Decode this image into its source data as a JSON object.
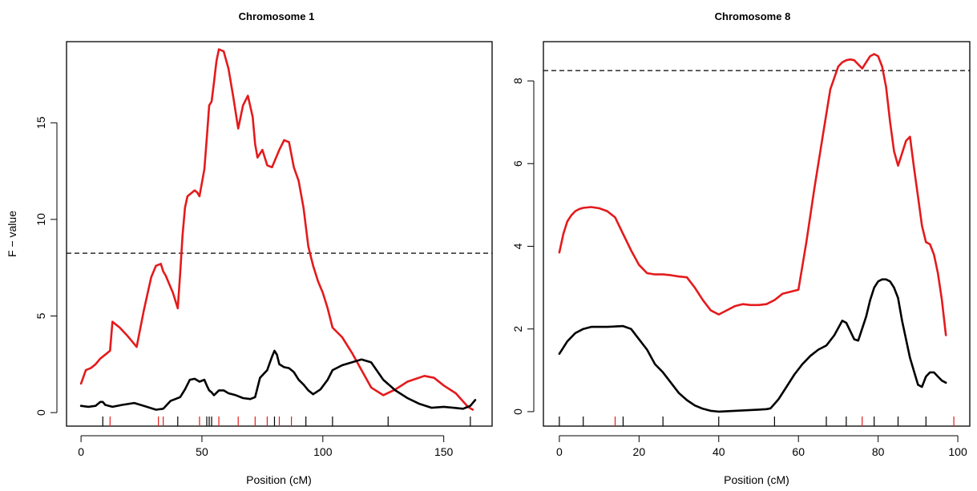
{
  "chart_data": [
    {
      "type": "line",
      "title": "Chromosome  1",
      "xlabel": "Position (cM)",
      "ylabel": "F − value",
      "xlim": [
        -6,
        170
      ],
      "ylim": [
        -0.7,
        19.2
      ],
      "xticks": [
        0,
        50,
        100,
        150
      ],
      "yticks": [
        0,
        5,
        10,
        15
      ],
      "threshold": 8.25,
      "grid": false,
      "series": [
        {
          "color": "#e41a1c",
          "x": [
            0,
            2,
            4,
            6,
            8,
            10,
            12,
            13,
            16,
            19,
            23,
            26,
            29,
            31,
            33,
            34,
            35,
            36,
            38,
            40,
            41,
            42,
            43,
            44,
            46,
            47,
            48,
            49,
            51,
            52,
            53,
            54,
            55,
            56,
            57,
            59,
            61,
            63,
            65,
            67,
            69,
            71,
            72,
            73,
            75,
            77,
            79,
            81,
            82,
            84,
            86,
            88,
            90,
            92,
            94,
            96,
            98,
            100,
            102,
            104,
            108,
            112,
            116,
            120,
            125,
            130,
            135,
            142,
            146,
            150,
            155,
            160,
            162
          ],
          "y": [
            1.5,
            2.2,
            2.3,
            2.5,
            2.8,
            3.0,
            3.2,
            4.7,
            4.4,
            4.0,
            3.4,
            5.3,
            7.0,
            7.6,
            7.7,
            7.3,
            7.1,
            6.8,
            6.2,
            5.4,
            7.2,
            9.2,
            10.6,
            11.2,
            11.4,
            11.5,
            11.4,
            11.2,
            12.6,
            14.2,
            15.9,
            16.1,
            17.1,
            18.2,
            18.8,
            18.7,
            17.8,
            16.3,
            14.7,
            15.9,
            16.4,
            15.3,
            13.9,
            13.2,
            13.6,
            12.8,
            12.7,
            13.3,
            13.6,
            14.1,
            14.0,
            12.7,
            12.0,
            10.6,
            8.6,
            7.6,
            6.8,
            6.2,
            5.4,
            4.4,
            3.9,
            3.1,
            2.2,
            1.3,
            0.9,
            1.2,
            1.6,
            1.9,
            1.8,
            1.4,
            1.0,
            0.3,
            0.15
          ]
        },
        {
          "color": "#000000",
          "x": [
            0,
            3,
            6,
            8,
            9,
            10,
            13,
            17,
            22,
            26,
            31,
            34,
            37,
            39,
            41,
            43,
            45,
            47,
            49,
            51,
            52,
            53,
            54,
            55,
            57,
            59,
            61,
            64,
            67,
            70,
            72,
            74,
            77,
            79,
            80,
            81,
            82,
            84,
            86,
            88,
            90,
            92,
            94,
            96,
            99,
            102,
            104,
            108,
            112,
            116,
            120,
            125,
            130,
            135,
            140,
            145,
            150,
            154,
            158,
            161,
            163
          ],
          "y": [
            0.35,
            0.3,
            0.35,
            0.55,
            0.55,
            0.4,
            0.3,
            0.4,
            0.5,
            0.35,
            0.15,
            0.2,
            0.6,
            0.7,
            0.8,
            1.2,
            1.7,
            1.75,
            1.6,
            1.7,
            1.4,
            1.15,
            1.05,
            0.9,
            1.15,
            1.15,
            1.0,
            0.9,
            0.75,
            0.7,
            0.8,
            1.8,
            2.2,
            2.9,
            3.2,
            3.0,
            2.5,
            2.35,
            2.3,
            2.1,
            1.7,
            1.45,
            1.15,
            0.95,
            1.2,
            1.7,
            2.2,
            2.45,
            2.6,
            2.75,
            2.6,
            1.7,
            1.15,
            0.75,
            0.45,
            0.25,
            0.3,
            0.25,
            0.2,
            0.35,
            0.65
          ]
        }
      ],
      "markers": {
        "red": [
          12,
          32,
          34,
          49,
          57,
          65,
          72,
          77,
          82,
          87
        ],
        "black": [
          9,
          40,
          52,
          53,
          54,
          80,
          93,
          104,
          127,
          161
        ]
      }
    },
    {
      "type": "line",
      "title": "Chromosome  8",
      "xlabel": "Position (cM)",
      "ylabel": "",
      "xlim": [
        -4,
        103
      ],
      "ylim": [
        -0.35,
        8.95
      ],
      "xticks": [
        0,
        20,
        40,
        60,
        80,
        100
      ],
      "yticks": [
        0,
        2,
        4,
        6,
        8
      ],
      "threshold": 8.25,
      "grid": false,
      "series": [
        {
          "color": "#e41a1c",
          "x": [
            0,
            1,
            2,
            3,
            4,
            5,
            6,
            8,
            10,
            12,
            14,
            16,
            18,
            20,
            22,
            24,
            26,
            28,
            30,
            32,
            34,
            36,
            38,
            40,
            42,
            44,
            46,
            48,
            50,
            52,
            54,
            56,
            58,
            60,
            62,
            64,
            66,
            68,
            70,
            71,
            72,
            73,
            74,
            75,
            76,
            77,
            78,
            79,
            80,
            81,
            82,
            83,
            84,
            85,
            86,
            87,
            88,
            89,
            90,
            91,
            92,
            93,
            94,
            95,
            96,
            97
          ],
          "y": [
            3.85,
            4.3,
            4.6,
            4.75,
            4.85,
            4.9,
            4.93,
            4.95,
            4.92,
            4.85,
            4.7,
            4.3,
            3.9,
            3.55,
            3.35,
            3.32,
            3.32,
            3.3,
            3.27,
            3.25,
            3.0,
            2.7,
            2.45,
            2.35,
            2.45,
            2.55,
            2.6,
            2.58,
            2.58,
            2.6,
            2.7,
            2.85,
            2.9,
            2.95,
            4.1,
            5.4,
            6.6,
            7.8,
            8.35,
            8.45,
            8.5,
            8.52,
            8.5,
            8.4,
            8.3,
            8.45,
            8.6,
            8.65,
            8.6,
            8.35,
            7.85,
            7.0,
            6.3,
            5.95,
            6.25,
            6.55,
            6.65,
            5.9,
            5.2,
            4.5,
            4.1,
            4.05,
            3.8,
            3.35,
            2.7,
            1.85
          ]
        },
        {
          "color": "#000000",
          "x": [
            0,
            1,
            2,
            4,
            6,
            8,
            10,
            12,
            14,
            16,
            18,
            20,
            22,
            24,
            26,
            28,
            30,
            32,
            34,
            36,
            38,
            40,
            42,
            44,
            46,
            48,
            50,
            52,
            53,
            55,
            57,
            59,
            61,
            63,
            65,
            67,
            69,
            71,
            72,
            74,
            75,
            77,
            78,
            79,
            80,
            81,
            82,
            83,
            84,
            85,
            86,
            88,
            90,
            91,
            92,
            93,
            94,
            95,
            96,
            97
          ],
          "y": [
            1.4,
            1.55,
            1.7,
            1.9,
            2.0,
            2.05,
            2.05,
            2.05,
            2.06,
            2.07,
            2.0,
            1.75,
            1.5,
            1.15,
            0.95,
            0.7,
            0.45,
            0.28,
            0.15,
            0.07,
            0.02,
            0.0,
            0.01,
            0.02,
            0.03,
            0.04,
            0.05,
            0.06,
            0.08,
            0.3,
            0.6,
            0.9,
            1.15,
            1.35,
            1.5,
            1.6,
            1.85,
            2.2,
            2.15,
            1.75,
            1.72,
            2.3,
            2.7,
            3.0,
            3.15,
            3.2,
            3.2,
            3.15,
            3.0,
            2.75,
            2.2,
            1.3,
            0.65,
            0.6,
            0.85,
            0.95,
            0.95,
            0.85,
            0.75,
            0.7
          ]
        }
      ],
      "markers": {
        "red": [
          14,
          76,
          99
        ],
        "black": [
          0,
          6,
          16,
          26,
          40,
          54,
          67,
          72,
          79,
          85,
          92
        ]
      }
    }
  ]
}
